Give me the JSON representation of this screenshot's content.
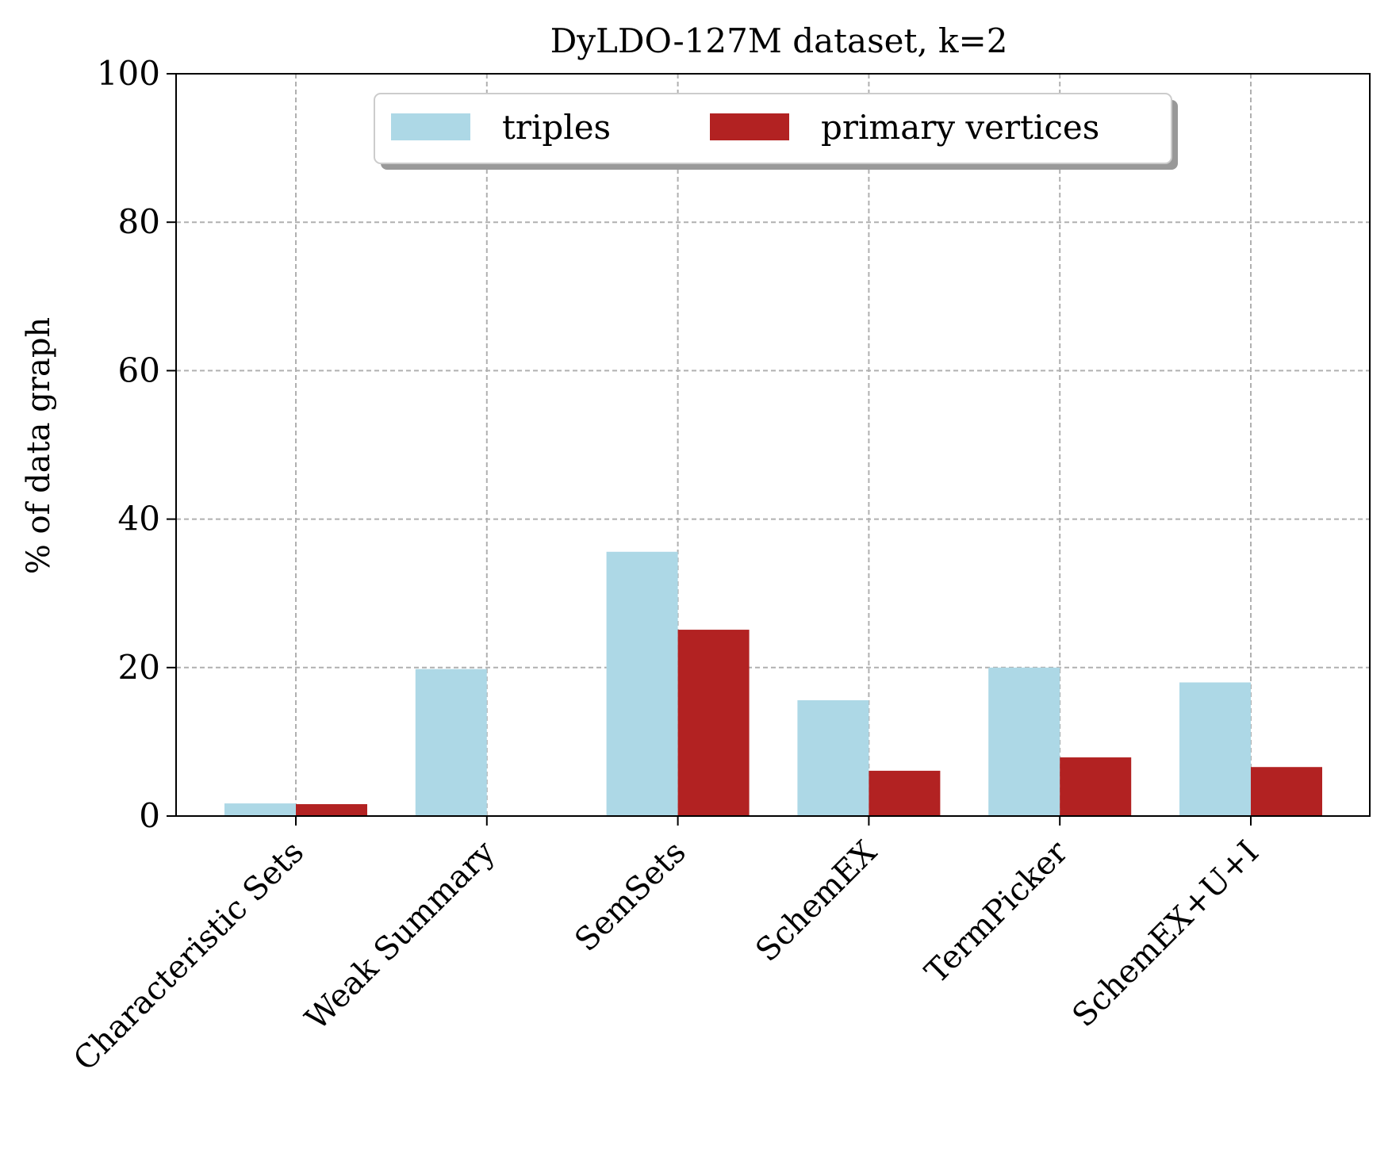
{
  "chart_data": {
    "type": "bar",
    "title": "DyLDO-127M dataset, k=2",
    "xlabel": "",
    "ylabel": "% of data graph",
    "ylim": [
      0,
      100
    ],
    "yticks": [
      0,
      20,
      40,
      60,
      80,
      100
    ],
    "grid": true,
    "legend_position": "top-center",
    "categories": [
      "Characteristic Sets",
      "Weak Summary",
      "SemSets",
      "SchemEX",
      "TermPicker",
      "SchemEX+U+I"
    ],
    "series": [
      {
        "name": "triples",
        "color": "#add8e6",
        "values": [
          1.7,
          19.8,
          35.6,
          15.6,
          20.0,
          18.0
        ]
      },
      {
        "name": "primary vertices",
        "color": "#b22222",
        "values": [
          1.6,
          0,
          25.1,
          6.1,
          7.9,
          6.6
        ]
      }
    ]
  }
}
